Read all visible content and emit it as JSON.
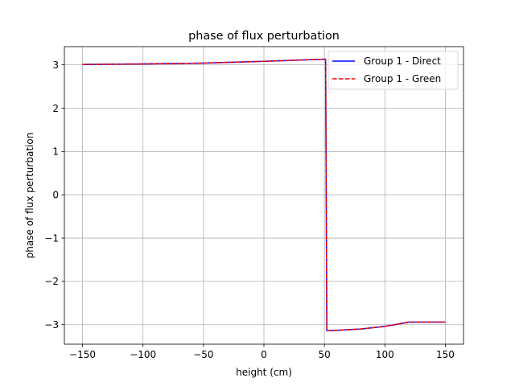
{
  "chart_data": {
    "type": "line",
    "title": "phase of flux perturbation",
    "xlabel": "height (cm)",
    "ylabel": "phase of flux perturbation",
    "xlim": [
      -165,
      165
    ],
    "ylim": [
      -3.45,
      3.42
    ],
    "xticks": [
      -150,
      -100,
      -50,
      0,
      50,
      100,
      150
    ],
    "yticks": [
      -3,
      -2,
      -1,
      0,
      1,
      2,
      3
    ],
    "xtick_labels": [
      "−150",
      "−100",
      "−50",
      "0",
      "50",
      "100",
      "150"
    ],
    "ytick_labels": [
      "−3",
      "−2",
      "−1",
      "0",
      "1",
      "2",
      "3"
    ],
    "grid": true,
    "legend_position": "top-right",
    "series": [
      {
        "name": "Group 1 - Direct",
        "color": "#0000ff",
        "style": "solid",
        "x": [
          -150,
          -100,
          -50,
          0,
          50,
          51,
          52,
          60,
          80,
          100,
          120,
          150
        ],
        "y": [
          3.01,
          3.02,
          3.04,
          3.08,
          3.13,
          3.13,
          -3.14,
          -3.13,
          -3.1,
          -3.04,
          -2.94,
          -2.94
        ]
      },
      {
        "name": "Group 1 - Green",
        "color": "#ff0000",
        "style": "dashed",
        "x": [
          -150,
          -100,
          -50,
          0,
          50,
          51,
          52,
          60,
          80,
          100,
          120,
          150
        ],
        "y": [
          3.01,
          3.02,
          3.04,
          3.08,
          3.13,
          3.13,
          -3.14,
          -3.13,
          -3.1,
          -3.04,
          -2.94,
          -2.94
        ]
      }
    ]
  }
}
